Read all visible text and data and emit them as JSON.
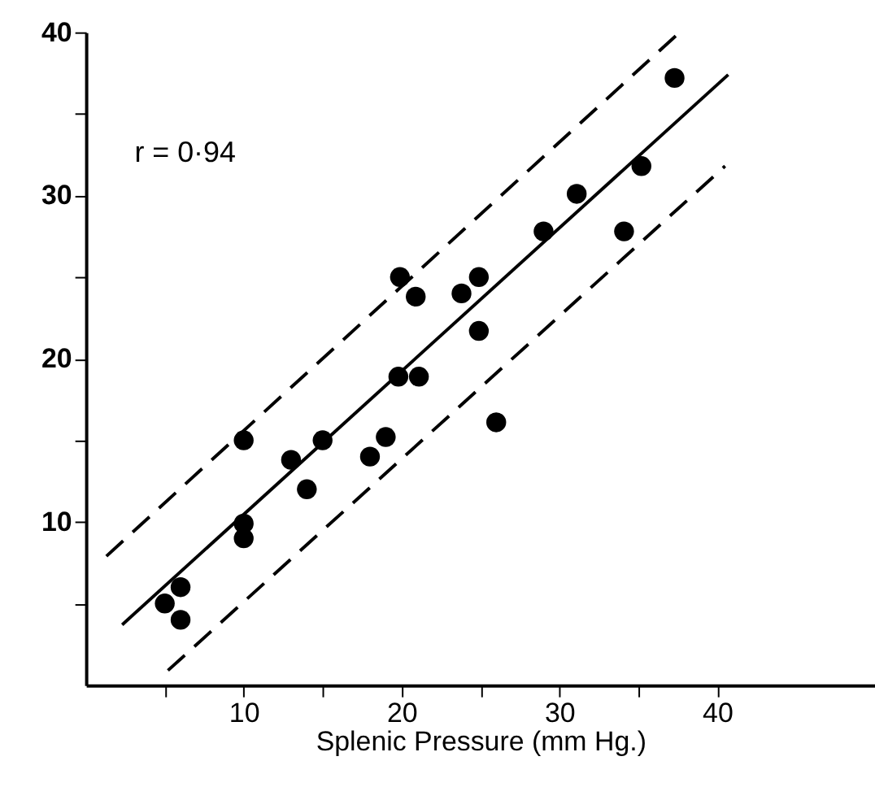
{
  "chart_data": {
    "type": "scatter",
    "xlabel": "Splenic  Pressure (mm Hg.)",
    "annotations": [
      "r = 0·94"
    ],
    "xlim": [
      0,
      50
    ],
    "ylim": [
      0,
      40
    ],
    "xticks": [
      {
        "value": 5,
        "label": null
      },
      10,
      {
        "value": 15,
        "label": null
      },
      20,
      {
        "value": 25,
        "label": null
      },
      30,
      {
        "value": 35,
        "label": null
      },
      40
    ],
    "yticks": [
      {
        "value": 5,
        "label": null
      },
      10,
      {
        "value": 15,
        "label": null
      },
      20,
      {
        "value": 25,
        "label": null
      },
      30,
      {
        "value": 35,
        "label": null
      },
      40
    ],
    "grid": false,
    "marker": "circle",
    "series": [
      {
        "color": "#000000",
        "x": [
          5,
          6,
          6,
          10,
          10,
          10,
          13,
          14,
          15,
          18,
          19,
          26,
          37.3,
          35.2,
          34.1,
          31.1,
          29,
          24.9,
          23.8,
          24.9,
          19.9,
          20.9,
          19.8,
          21.1
        ],
        "values": [
          5,
          6,
          4,
          15,
          9.9,
          9,
          13.8,
          12,
          15,
          14,
          15.2,
          16.1,
          37.2,
          31.8,
          27.8,
          30.1,
          27.8,
          25,
          24,
          21.7,
          25,
          23.8,
          18.9,
          18.9
        ]
      },
      {
        "type": "line",
        "color": "#000000",
        "line_style": "solid",
        "marker": "none",
        "x": [
          2.3,
          40.7
        ],
        "values": [
          3.7,
          37.4
        ]
      },
      {
        "type": "line",
        "color": "#000000",
        "line_style": "dashed",
        "marker": "none",
        "x": [
          1.3,
          37.4
        ],
        "values": [
          7.9,
          39.8
        ]
      },
      {
        "type": "line",
        "color": "#000000",
        "line_style": "dashed",
        "marker": "none",
        "x": [
          5.2,
          40.5
        ],
        "values": [
          0.9,
          31.8
        ]
      }
    ]
  }
}
